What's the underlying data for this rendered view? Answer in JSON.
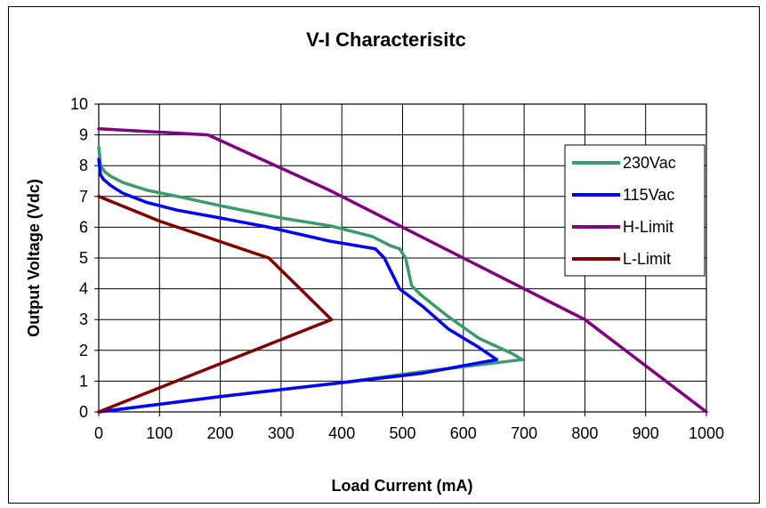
{
  "chart_data": {
    "type": "line",
    "title": "V-I Characterisitc",
    "xlabel": "Load Current (mA)",
    "ylabel": "Output Voltage (Vdc)",
    "xlim": [
      0,
      1000
    ],
    "ylim": [
      0,
      10
    ],
    "xticks": [
      0,
      100,
      200,
      300,
      400,
      500,
      600,
      700,
      800,
      900,
      1000
    ],
    "yticks": [
      0,
      1,
      2,
      3,
      4,
      5,
      6,
      7,
      8,
      9,
      10
    ],
    "grid": true,
    "legend_position": "right",
    "series": [
      {
        "name": "230Vac",
        "color": "#3a9c68",
        "points": [
          [
            0,
            8.6
          ],
          [
            3,
            8.0
          ],
          [
            10,
            7.8
          ],
          [
            20,
            7.65
          ],
          [
            40,
            7.45
          ],
          [
            80,
            7.2
          ],
          [
            130,
            7.0
          ],
          [
            200,
            6.7
          ],
          [
            300,
            6.3
          ],
          [
            380,
            6.05
          ],
          [
            450,
            5.7
          ],
          [
            480,
            5.4
          ],
          [
            495,
            5.3
          ],
          [
            505,
            5.0
          ],
          [
            515,
            4.1
          ],
          [
            530,
            3.8
          ],
          [
            575,
            3.1
          ],
          [
            625,
            2.4
          ],
          [
            680,
            1.9
          ],
          [
            697,
            1.7
          ],
          [
            530,
            1.3
          ],
          [
            400,
            0.95
          ],
          [
            200,
            0.5
          ],
          [
            0,
            0
          ]
        ]
      },
      {
        "name": "115Vac",
        "color": "#0000ff",
        "points": [
          [
            0,
            8.2
          ],
          [
            3,
            7.7
          ],
          [
            8,
            7.55
          ],
          [
            20,
            7.35
          ],
          [
            40,
            7.1
          ],
          [
            80,
            6.8
          ],
          [
            130,
            6.55
          ],
          [
            200,
            6.3
          ],
          [
            280,
            6.0
          ],
          [
            380,
            5.55
          ],
          [
            455,
            5.3
          ],
          [
            470,
            5.0
          ],
          [
            480,
            4.6
          ],
          [
            495,
            4.0
          ],
          [
            535,
            3.4
          ],
          [
            575,
            2.7
          ],
          [
            625,
            2.1
          ],
          [
            655,
            1.7
          ],
          [
            530,
            1.25
          ],
          [
            400,
            0.95
          ],
          [
            200,
            0.5
          ],
          [
            0,
            0
          ]
        ]
      },
      {
        "name": "H-Limit",
        "color": "#800080",
        "points": [
          [
            0,
            9.2
          ],
          [
            180,
            9.0
          ],
          [
            380,
            7.2
          ],
          [
            800,
            3.0
          ],
          [
            1000,
            0
          ]
        ]
      },
      {
        "name": "L-Limit",
        "color": "#800000",
        "points": [
          [
            0,
            7.0
          ],
          [
            100,
            6.2
          ],
          [
            280,
            5.0
          ],
          [
            383,
            3.0
          ],
          [
            0,
            0
          ]
        ]
      }
    ]
  }
}
